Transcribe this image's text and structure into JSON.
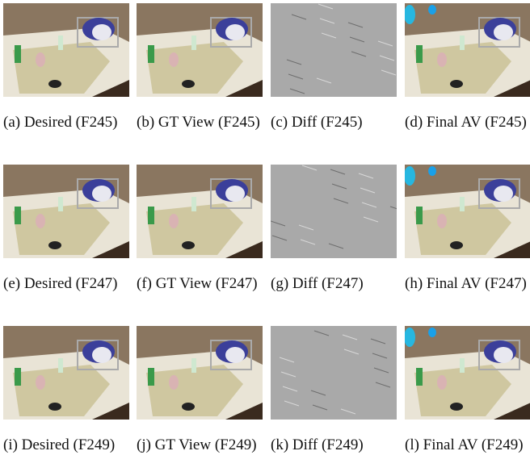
{
  "figure": {
    "panels": [
      {
        "caption": "(a) Desired (F245)"
      },
      {
        "caption": "(b) GT View (F245)"
      },
      {
        "caption": "(c) Diff (F245)"
      },
      {
        "caption": "(d) Final AV (F245)"
      },
      {
        "caption": "(e) Desired (F247)"
      },
      {
        "caption": "(f) GT View (F247)"
      },
      {
        "caption": "(g) Diff (F247)"
      },
      {
        "caption": "(h) Final AV (F247)"
      },
      {
        "caption": "(i) Desired (F249)"
      },
      {
        "caption": "(j) GT View (F249)"
      },
      {
        "caption": "(k) Diff (F249)"
      },
      {
        "caption": "(l) Final AV (F249)"
      }
    ]
  }
}
